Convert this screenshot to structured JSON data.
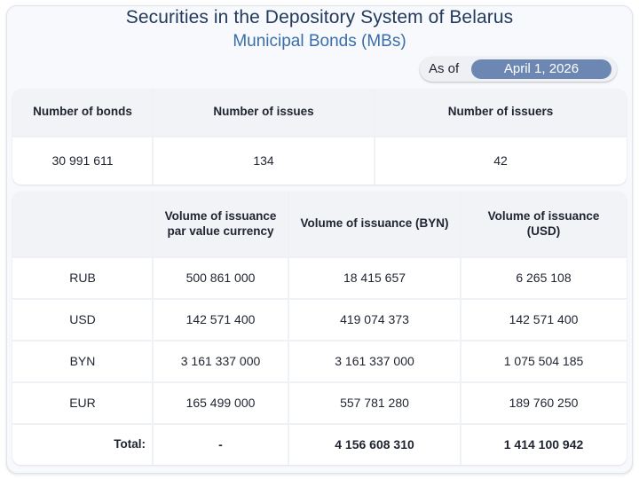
{
  "header": {
    "title": "Securities in the Depository System of Belarus",
    "subtitle": "Municipal Bonds (MBs)",
    "as_of_label": "As of",
    "as_of_date": "April 1, 2026"
  },
  "summary": {
    "columns": [
      "Number of bonds",
      "Number of issues",
      "Number of issuers"
    ],
    "values": [
      "30 991 611",
      "134",
      "42"
    ]
  },
  "volume": {
    "columns": [
      "",
      "Volume of issuance par value currency",
      "Volume of issuance (BYN)",
      "Volume of issuance (USD)"
    ],
    "rows": [
      {
        "currency": "RUB",
        "par": "500 861 000",
        "byn": "18 415 657",
        "usd": "6 265 108"
      },
      {
        "currency": "USD",
        "par": "142 571 400",
        "byn": "419 074 373",
        "usd": "142 571 400"
      },
      {
        "currency": "BYN",
        "par": "3 161 337 000",
        "byn": "3 161 337 000",
        "usd": "1 075 504 185"
      },
      {
        "currency": "EUR",
        "par": "165 499 000",
        "byn": "557 781 280",
        "usd": "189 760 250"
      }
    ],
    "total": {
      "label": "Total:",
      "par": "-",
      "byn": "4 156 608 310",
      "usd": "1 414 100 942"
    }
  }
}
